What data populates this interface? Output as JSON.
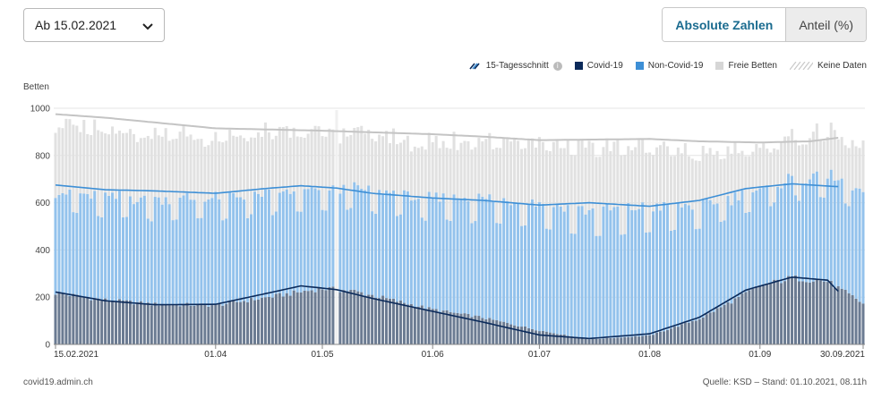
{
  "controls": {
    "date_select_value": "Ab 15.02.2021",
    "tab_absolute": "Absolute Zahlen",
    "tab_share": "Anteil (%)"
  },
  "legend": {
    "avg": "15-Tagesschnitt",
    "covid": "Covid-19",
    "non_covid": "Non-Covid-19",
    "free": "Freie Betten",
    "no_data": "Keine Daten"
  },
  "footer": {
    "source_left": "covid19.admin.ch",
    "source_right": "Quelle: KSD – Stand: 01.10.2021, 08.11h"
  },
  "colors": {
    "covid": "#0b2a5a",
    "covid_bar": "#6b7b92",
    "non_covid": "#3d8fd6",
    "non_covid_bar": "#93c2ec",
    "free": "#e1e1e1",
    "free_line": "#c4c4c4",
    "grid": "#e4e4e4"
  },
  "chart_data": {
    "type": "bar",
    "stacked": true,
    "ylabel": "Betten",
    "ylim": [
      0,
      1000
    ],
    "yticks": [
      0,
      200,
      400,
      600,
      800,
      1000
    ],
    "x_range": [
      "15.02.2021",
      "30.09.2021"
    ],
    "xtick_labels": [
      "15.02.2021",
      "01.04",
      "01.05",
      "01.06",
      "01.07",
      "01.08",
      "01.09",
      "30.09.2021"
    ],
    "grid": true,
    "legend_position": "top-right",
    "series": [
      {
        "name": "Covid-19",
        "stack_order": 1,
        "daily_shape_points": [
          [
            "15.02.2021",
            220
          ],
          [
            "01.03.2021",
            190
          ],
          [
            "15.03.2021",
            172
          ],
          [
            "01.04.2021",
            168
          ],
          [
            "15.04.2021",
            200
          ],
          [
            "01.05.2021",
            240
          ],
          [
            "10.05.2021",
            228
          ],
          [
            "01.06.2021",
            150
          ],
          [
            "15.06.2021",
            115
          ],
          [
            "01.07.2021",
            60
          ],
          [
            "15.07.2021",
            22
          ],
          [
            "01.08.2021",
            38
          ],
          [
            "15.08.2021",
            110
          ],
          [
            "01.09.2021",
            250
          ],
          [
            "10.09.2021",
            285
          ],
          [
            "20.09.2021",
            270
          ],
          [
            "30.09.2021",
            175
          ]
        ]
      },
      {
        "name": "Non-Covid-19",
        "stack_order": 2,
        "daily_shape_points": [
          [
            "15.02.2021",
            430
          ],
          [
            "01.04.2021",
            455
          ],
          [
            "01.05.2021",
            420
          ],
          [
            "01.06.2021",
            470
          ],
          [
            "01.07.2021",
            545
          ],
          [
            "01.08.2021",
            545
          ],
          [
            "01.09.2021",
            400
          ],
          [
            "30.09.2021",
            470
          ]
        ]
      },
      {
        "name": "Freie Betten",
        "stack_order": 3,
        "daily_shape_points": [
          [
            "15.02.2021",
            300
          ],
          [
            "01.04.2021",
            265
          ],
          [
            "01.05.2021",
            250
          ],
          [
            "01.06.2021",
            240
          ],
          [
            "01.07.2021",
            265
          ],
          [
            "01.08.2021",
            270
          ],
          [
            "01.09.2021",
            180
          ],
          [
            "30.09.2021",
            200
          ]
        ]
      }
    ],
    "averages": [
      {
        "name": "15-Tagesschnitt Covid-19",
        "points": [
          [
            "15.02.2021",
            222
          ],
          [
            "01.03.2021",
            185
          ],
          [
            "15.03.2021",
            168
          ],
          [
            "01.04.2021",
            170
          ],
          [
            "15.04.2021",
            215
          ],
          [
            "25.04.2021",
            248
          ],
          [
            "05.05.2021",
            232
          ],
          [
            "15.05.2021",
            195
          ],
          [
            "01.06.2021",
            140
          ],
          [
            "15.06.2021",
            95
          ],
          [
            "01.07.2021",
            40
          ],
          [
            "15.07.2021",
            25
          ],
          [
            "01.08.2021",
            45
          ],
          [
            "15.08.2021",
            115
          ],
          [
            "28.08.2021",
            230
          ],
          [
            "10.09.2021",
            285
          ],
          [
            "20.09.2021",
            272
          ],
          [
            "23.09.2021",
            225
          ]
        ]
      },
      {
        "name": "15-Tagesschnitt Non-Covid-19",
        "points": [
          [
            "15.02.2021",
            675
          ],
          [
            "01.03.2021",
            655
          ],
          [
            "15.03.2021",
            650
          ],
          [
            "01.04.2021",
            640
          ],
          [
            "15.04.2021",
            660
          ],
          [
            "25.04.2021",
            672
          ],
          [
            "05.05.2021",
            662
          ],
          [
            "15.05.2021",
            640
          ],
          [
            "01.06.2021",
            620
          ],
          [
            "15.06.2021",
            610
          ],
          [
            "01.07.2021",
            590
          ],
          [
            "15.07.2021",
            600
          ],
          [
            "01.08.2021",
            585
          ],
          [
            "15.08.2021",
            610
          ],
          [
            "28.08.2021",
            660
          ],
          [
            "10.09.2021",
            680
          ],
          [
            "23.09.2021",
            668
          ]
        ]
      },
      {
        "name": "15-Tagesschnitt Freie Betten",
        "points": [
          [
            "15.02.2021",
            975
          ],
          [
            "01.03.2021",
            960
          ],
          [
            "01.04.2021",
            915
          ],
          [
            "01.05.2021",
            905
          ],
          [
            "01.06.2021",
            890
          ],
          [
            "15.06.2021",
            880
          ],
          [
            "01.07.2021",
            865
          ],
          [
            "01.08.2021",
            870
          ],
          [
            "15.08.2021",
            860
          ],
          [
            "01.09.2021",
            855
          ],
          [
            "15.09.2021",
            860
          ],
          [
            "23.09.2021",
            875
          ]
        ]
      }
    ],
    "no_data_marker": "05.05.2021"
  }
}
